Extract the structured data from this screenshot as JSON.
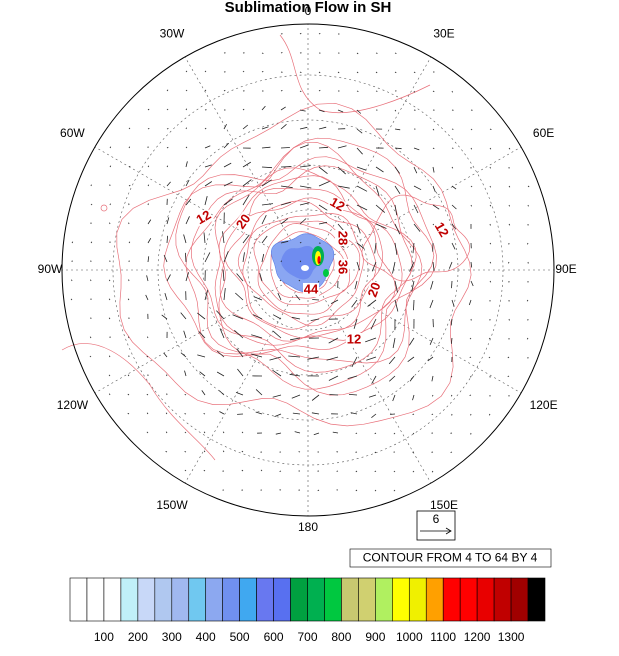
{
  "title": "Sublimation Flow in SH",
  "lon_labels": [
    "0",
    "30E",
    "60E",
    "90E",
    "120E",
    "150E",
    "180",
    "150W",
    "120W",
    "90W",
    "60W",
    "30W"
  ],
  "contour_labels": [
    "12",
    "20",
    "12",
    "28",
    "36",
    "20",
    "44",
    "12",
    "12"
  ],
  "vector_reference": "6",
  "contour_info": "CONTOUR FROM 4 TO 64 BY 4",
  "colorbar": {
    "colors": [
      "#ffffff",
      "#ffffff",
      "#ffffff",
      "#c0f0f8",
      "#c8d8f8",
      "#b0c8f0",
      "#a0b8f0",
      "#70c8f0",
      "#8ca8f0",
      "#7090f0",
      "#40a8f0",
      "#6878f0",
      "#5870f0",
      "#00a040",
      "#00b050",
      "#00c840",
      "#c8c870",
      "#d0d070",
      "#b0f060",
      "#ffff00",
      "#f0f000",
      "#ffa000",
      "#ff0000",
      "#ff0000",
      "#e80000",
      "#c00000",
      "#a00000",
      "#000000"
    ],
    "labels": [
      100,
      200,
      300,
      400,
      500,
      600,
      700,
      800,
      900,
      1000,
      1100,
      1200,
      1300
    ]
  }
}
